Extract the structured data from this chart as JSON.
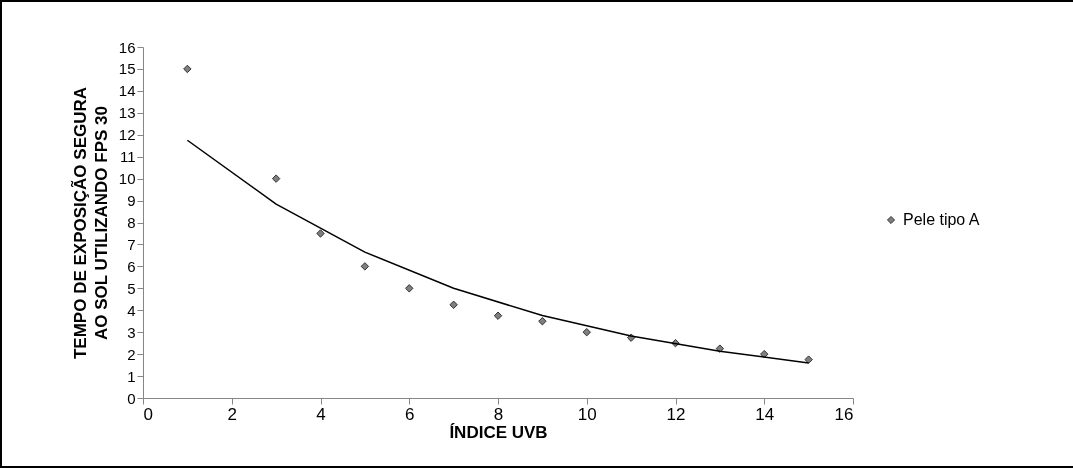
{
  "chart_data": {
    "type": "scatter",
    "xlabel": "ÍNDICE UVB",
    "ylabel": "TEMPO DE EXPOSIÇÃO SEGURA\nAO SOL UTILIZANDO FPS 30",
    "xlim": [
      0,
      16
    ],
    "xticks": [
      0,
      2,
      4,
      6,
      8,
      10,
      12,
      14,
      16
    ],
    "ylim": [
      0,
      16
    ],
    "yticks": [
      0,
      1,
      2,
      3,
      4,
      5,
      6,
      7,
      8,
      9,
      10,
      11,
      12,
      13,
      14,
      15,
      16
    ],
    "grid": false,
    "legend": "right",
    "marker": "diamond",
    "series": [
      {
        "name": "Pele tipo A",
        "color": "#7f7f7f",
        "x": [
          1,
          3,
          4,
          5,
          6,
          7,
          8,
          9,
          10,
          11,
          12,
          13,
          14,
          15
        ],
        "values": [
          15,
          10,
          7.5,
          6,
          5,
          4.25,
          3.75,
          3.5,
          3,
          2.75,
          2.5,
          2.25,
          2,
          1.75
        ]
      },
      {
        "type": "line",
        "color": "#000000",
        "line_style": "solid",
        "marker": "none",
        "x": [
          1,
          3,
          5,
          7,
          9,
          11,
          13,
          15
        ],
        "values": [
          11.75,
          8.84,
          6.65,
          5.0,
          3.76,
          2.83,
          2.13,
          1.6
        ]
      }
    ]
  }
}
